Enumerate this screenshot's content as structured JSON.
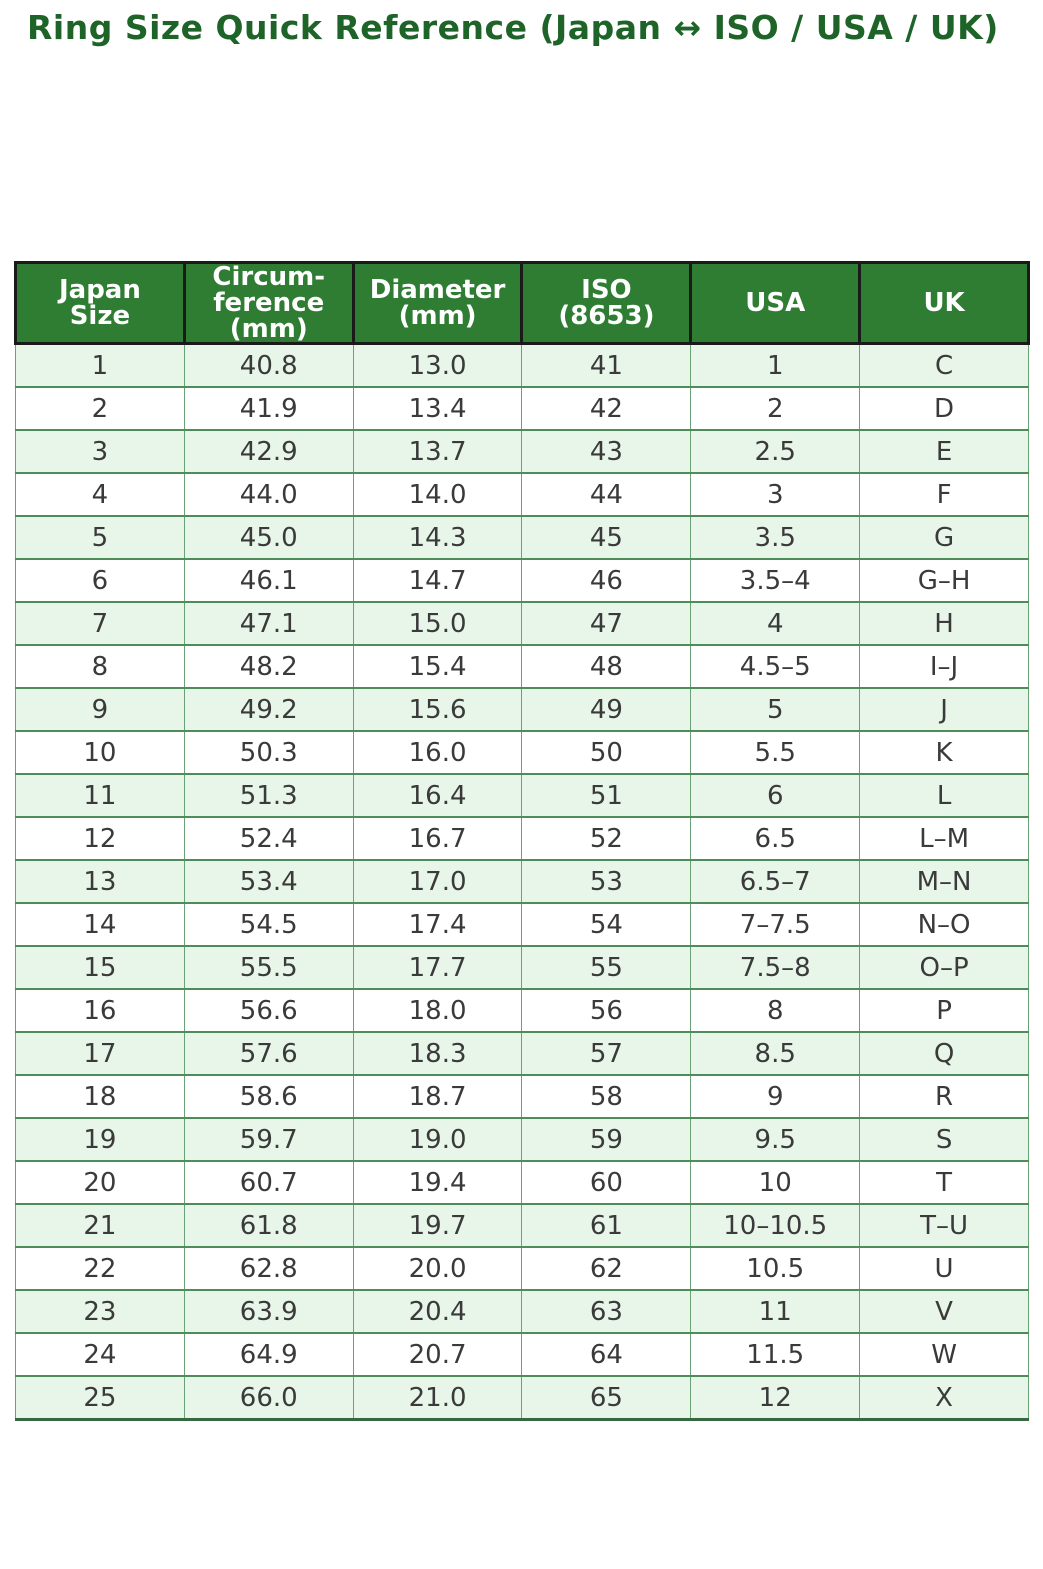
{
  "title": "Ring Size Quick Reference (Japan ↔ ISO / USA / UK)",
  "colors": {
    "title_text": "#1e6428",
    "header_bg": "#2e7d32",
    "header_text": "#ffffff",
    "header_border": "#1a1a1a",
    "row_alt_bg": "#e8f5e9",
    "row_bg": "#ffffff",
    "grid_line": "#4e8d5a",
    "cell_text": "#3a3a3a"
  },
  "chart_data": {
    "type": "table",
    "title": "Ring Size Quick Reference (Japan ↔ ISO / USA / UK)",
    "columns": [
      "Japan\nSize",
      "Circum-\nference\n(mm)",
      "Diameter\n(mm)",
      "ISO\n(8653)",
      "USA",
      "UK"
    ],
    "rows": [
      [
        "1",
        "40.8",
        "13.0",
        "41",
        "1",
        "C"
      ],
      [
        "2",
        "41.9",
        "13.4",
        "42",
        "2",
        "D"
      ],
      [
        "3",
        "42.9",
        "13.7",
        "43",
        "2.5",
        "E"
      ],
      [
        "4",
        "44.0",
        "14.0",
        "44",
        "3",
        "F"
      ],
      [
        "5",
        "45.0",
        "14.3",
        "45",
        "3.5",
        "G"
      ],
      [
        "6",
        "46.1",
        "14.7",
        "46",
        "3.5–4",
        "G–H"
      ],
      [
        "7",
        "47.1",
        "15.0",
        "47",
        "4",
        "H"
      ],
      [
        "8",
        "48.2",
        "15.4",
        "48",
        "4.5–5",
        "I–J"
      ],
      [
        "9",
        "49.2",
        "15.6",
        "49",
        "5",
        "J"
      ],
      [
        "10",
        "50.3",
        "16.0",
        "50",
        "5.5",
        "K"
      ],
      [
        "11",
        "51.3",
        "16.4",
        "51",
        "6",
        "L"
      ],
      [
        "12",
        "52.4",
        "16.7",
        "52",
        "6.5",
        "L–M"
      ],
      [
        "13",
        "53.4",
        "17.0",
        "53",
        "6.5–7",
        "M–N"
      ],
      [
        "14",
        "54.5",
        "17.4",
        "54",
        "7–7.5",
        "N–O"
      ],
      [
        "15",
        "55.5",
        "17.7",
        "55",
        "7.5–8",
        "O–P"
      ],
      [
        "16",
        "56.6",
        "18.0",
        "56",
        "8",
        "P"
      ],
      [
        "17",
        "57.6",
        "18.3",
        "57",
        "8.5",
        "Q"
      ],
      [
        "18",
        "58.6",
        "18.7",
        "58",
        "9",
        "R"
      ],
      [
        "19",
        "59.7",
        "19.0",
        "59",
        "9.5",
        "S"
      ],
      [
        "20",
        "60.7",
        "19.4",
        "60",
        "10",
        "T"
      ],
      [
        "21",
        "61.8",
        "19.7",
        "61",
        "10–10.5",
        "T–U"
      ],
      [
        "22",
        "62.8",
        "20.0",
        "62",
        "10.5",
        "U"
      ],
      [
        "23",
        "63.9",
        "20.4",
        "63",
        "11",
        "V"
      ],
      [
        "24",
        "64.9",
        "20.7",
        "64",
        "11.5",
        "W"
      ],
      [
        "25",
        "66.0",
        "21.0",
        "65",
        "12",
        "X"
      ]
    ]
  }
}
